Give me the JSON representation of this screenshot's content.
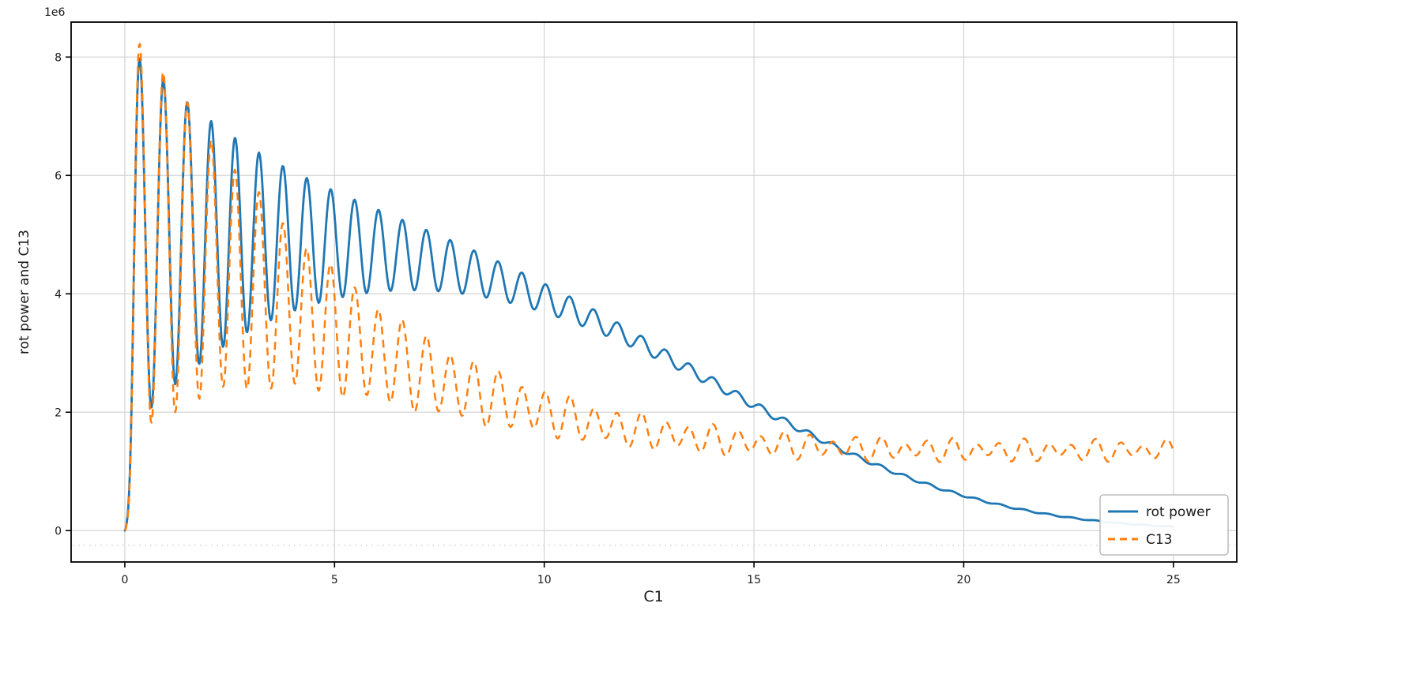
{
  "chart_data": {
    "type": "line",
    "title": "",
    "xlabel": "C1",
    "ylabel": "rot power and C13",
    "y_offset_text": "1e6",
    "xlim": [
      -1.28,
      26.51
    ],
    "ylim": [
      -530000,
      8590000
    ],
    "x_range": [
      0,
      25
    ],
    "x_ticks": [
      0,
      5,
      10,
      15,
      20,
      25
    ],
    "x_tick_labels": [
      "0",
      "5",
      "10",
      "15",
      "20",
      "25"
    ],
    "y_ticks": [
      0,
      2000000,
      4000000,
      6000000,
      8000000
    ],
    "y_tick_labels": [
      "0",
      "2",
      "4",
      "6",
      "8"
    ],
    "grid": true,
    "grid_color": "#d4d4d4",
    "legend": {
      "position": "lower right",
      "entries": [
        {
          "label": "rot power",
          "color": "#1f77b4",
          "style": "solid"
        },
        {
          "label": "C13",
          "color": "#ff7f0e",
          "style": "dashed"
        }
      ]
    },
    "series": [
      {
        "name": "rot power",
        "color": "#1f77b4",
        "line_style": "solid",
        "line_width": 2.8,
        "model": {
          "mean_base": 0,
          "mean_amp": 4950000,
          "mean_scale": 15.8,
          "mean_pow": 3.2,
          "mean_slope": 0,
          "osc_base": 0,
          "osc_amp": 3400000,
          "osc_tau": 3.8,
          "osc_period": 0.57,
          "osc_x0": 0.35,
          "ramp_tau": 0.16
        },
        "peaks_x_y_1e6": [
          [
            0.35,
            8.25
          ],
          [
            0.9,
            7.9
          ],
          [
            1.5,
            7.4
          ],
          [
            2.1,
            7.15
          ],
          [
            2.65,
            6.9
          ],
          [
            3.2,
            6.4
          ],
          [
            3.75,
            6.1
          ],
          [
            4.3,
            5.8
          ],
          [
            4.85,
            5.65
          ],
          [
            5.4,
            5.35
          ],
          [
            5.95,
            5.15
          ],
          [
            6.5,
            5.0
          ],
          [
            7.05,
            4.8
          ],
          [
            7.6,
            4.6
          ],
          [
            8.15,
            4.5
          ],
          [
            8.7,
            4.35
          ],
          [
            9.3,
            4.2
          ],
          [
            9.85,
            4.1
          ],
          [
            10.4,
            3.95
          ],
          [
            11.0,
            3.8
          ],
          [
            11.5,
            3.7
          ],
          [
            12.1,
            3.6
          ],
          [
            12.6,
            3.5
          ],
          [
            13.2,
            3.35
          ],
          [
            13.75,
            3.2
          ],
          [
            14.3,
            3.05
          ],
          [
            14.9,
            2.9
          ],
          [
            15.45,
            2.75
          ],
          [
            16.0,
            2.6
          ],
          [
            16.55,
            2.45
          ],
          [
            17.1,
            2.3
          ]
        ],
        "troughs_x_y_1e6": [
          [
            0.0,
            0.0
          ],
          [
            0.65,
            2.0
          ],
          [
            1.2,
            2.15
          ],
          [
            1.8,
            2.3
          ],
          [
            2.4,
            2.6
          ],
          [
            2.95,
            2.9
          ],
          [
            3.5,
            3.1
          ],
          [
            4.05,
            3.3
          ],
          [
            4.6,
            3.4
          ],
          [
            5.15,
            3.5
          ],
          [
            5.7,
            3.55
          ],
          [
            6.25,
            3.6
          ],
          [
            6.8,
            3.65
          ],
          [
            7.35,
            3.7
          ],
          [
            7.9,
            3.7
          ],
          [
            8.5,
            3.7
          ],
          [
            9.05,
            3.65
          ],
          [
            9.6,
            3.6
          ],
          [
            10.15,
            3.5
          ],
          [
            10.7,
            3.4
          ],
          [
            11.3,
            3.3
          ],
          [
            11.85,
            3.2
          ],
          [
            12.4,
            3.1
          ],
          [
            13.0,
            2.95
          ],
          [
            13.55,
            2.8
          ],
          [
            14.1,
            2.65
          ],
          [
            14.65,
            2.5
          ],
          [
            15.2,
            2.4
          ],
          [
            15.8,
            2.25
          ],
          [
            16.35,
            2.1
          ],
          [
            16.9,
            2.0
          ]
        ],
        "tail_x_y_1e6": [
          [
            17.5,
            1.9
          ],
          [
            18.0,
            1.55
          ],
          [
            18.5,
            1.35
          ],
          [
            19.0,
            1.1
          ],
          [
            19.5,
            0.85
          ],
          [
            20.0,
            0.6
          ],
          [
            20.5,
            0.45
          ],
          [
            21.0,
            0.3
          ],
          [
            21.5,
            0.18
          ],
          [
            22.0,
            0.1
          ],
          [
            22.5,
            0.05
          ],
          [
            23.0,
            0.02
          ],
          [
            24.0,
            0.01
          ],
          [
            25.0,
            0.05
          ]
        ]
      },
      {
        "name": "C13",
        "color": "#ff7f0e",
        "line_style": "dashed",
        "dash": "10 7",
        "line_width": 2.5,
        "model": {
          "mean_base": 1200000,
          "mean_amp": 3800000,
          "mean_scale": 7.2,
          "mean_pow": 1.5,
          "mean_slope": 6000,
          "osc_base": 130000,
          "osc_amp": 3600000,
          "osc_tau": 3.6,
          "osc_period": 0.57,
          "osc_x0": 0.35,
          "osc2_amp": 65000,
          "osc2_period": 0.83,
          "osc2_phase": 1.0,
          "ramp_tau": 0.16
        },
        "peaks_x_y_1e6": [
          [
            0.35,
            8.2
          ],
          [
            0.9,
            7.85
          ],
          [
            1.5,
            7.3
          ],
          [
            2.1,
            6.9
          ],
          [
            2.65,
            6.5
          ],
          [
            3.2,
            5.9
          ],
          [
            3.75,
            5.55
          ],
          [
            4.3,
            5.2
          ],
          [
            4.9,
            4.85
          ],
          [
            5.45,
            4.4
          ],
          [
            6.15,
            4.05
          ],
          [
            6.7,
            3.65
          ],
          [
            7.3,
            3.35
          ],
          [
            7.9,
            3.2
          ],
          [
            8.5,
            2.95
          ],
          [
            9.1,
            2.7
          ],
          [
            9.65,
            2.5
          ],
          [
            10.2,
            2.35
          ],
          [
            10.8,
            2.2
          ],
          [
            11.4,
            2.05
          ],
          [
            12.0,
            1.9
          ],
          [
            12.6,
            1.8
          ],
          [
            13.2,
            1.7
          ],
          [
            13.8,
            1.6
          ],
          [
            14.4,
            1.5
          ],
          [
            15.0,
            1.45
          ],
          [
            16.0,
            1.4
          ],
          [
            17.0,
            1.35
          ],
          [
            18.0,
            1.45
          ],
          [
            19.0,
            1.4
          ],
          [
            20.0,
            1.45
          ],
          [
            21.0,
            1.5
          ],
          [
            22.0,
            1.55
          ],
          [
            23.0,
            1.6
          ],
          [
            24.0,
            1.65
          ],
          [
            24.6,
            1.7
          ],
          [
            25.0,
            1.55
          ]
        ],
        "troughs_x_y_1e6": [
          [
            0.0,
            0.0
          ],
          [
            0.65,
            1.9
          ],
          [
            1.2,
            2.05
          ],
          [
            1.8,
            2.2
          ],
          [
            2.4,
            2.5
          ],
          [
            2.95,
            2.7
          ],
          [
            3.5,
            2.9
          ],
          [
            4.05,
            3.1
          ],
          [
            4.6,
            3.15
          ],
          [
            5.15,
            3.2
          ],
          [
            5.75,
            2.75
          ],
          [
            6.35,
            2.5
          ],
          [
            6.95,
            2.3
          ],
          [
            7.55,
            2.2
          ],
          [
            8.15,
            2.1
          ],
          [
            8.75,
            1.95
          ],
          [
            9.35,
            1.8
          ],
          [
            9.95,
            1.75
          ],
          [
            10.55,
            1.7
          ],
          [
            11.15,
            1.6
          ],
          [
            11.75,
            1.5
          ],
          [
            12.35,
            1.4
          ],
          [
            12.95,
            1.35
          ],
          [
            13.55,
            1.3
          ],
          [
            14.15,
            1.25
          ],
          [
            15.0,
            1.2
          ],
          [
            16.0,
            1.15
          ],
          [
            17.0,
            1.1
          ],
          [
            18.0,
            1.15
          ],
          [
            19.0,
            1.1
          ],
          [
            20.0,
            1.15
          ],
          [
            21.0,
            1.2
          ],
          [
            22.0,
            1.15
          ],
          [
            23.0,
            1.2
          ],
          [
            24.0,
            1.15
          ],
          [
            25.0,
            1.2
          ]
        ]
      }
    ]
  }
}
